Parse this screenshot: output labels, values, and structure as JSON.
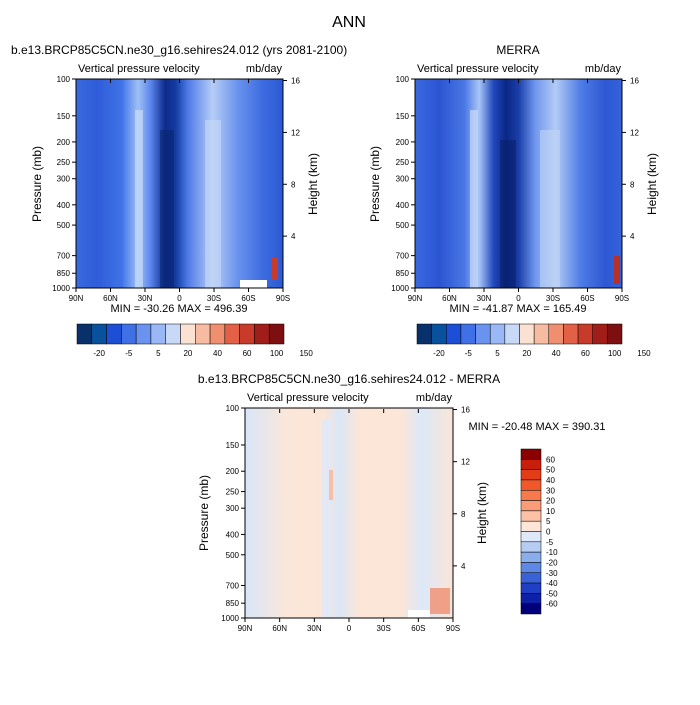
{
  "figure": {
    "title": "ANN"
  },
  "panels": [
    {
      "title": "b.e13.BRCP85C5CN.ne30_g16.sehires24.012 (yrs 2081-2100)",
      "variable": "Vertical pressure velocity",
      "units": "mb/day",
      "ylabel": "Pressure (mb)",
      "y2label": "Height (km)",
      "minmax": "MIN = -30.26  MAX = 496.39"
    },
    {
      "title": "MERRA",
      "variable": "Vertical pressure velocity",
      "units": "mb/day",
      "ylabel": "Pressure (mb)",
      "y2label": "Height (km)",
      "minmax": "MIN = -41.87  MAX = 165.49"
    },
    {
      "title": "b.e13.BRCP85C5CN.ne30_g16.sehires24.012 - MERRA",
      "variable": "Vertical pressure velocity",
      "units": "mb/day",
      "ylabel": "Pressure (mb)",
      "y2label": "Height (km)",
      "minmax": "MIN = -20.48  MAX = 390.31"
    }
  ],
  "colorbars": {
    "absolute": {
      "labels": [
        "-20",
        "-5",
        "5",
        "20",
        "40",
        "60",
        "100",
        "150"
      ],
      "colors": [
        "#08306b",
        "#08519c",
        "#1c4fd6",
        "#3f70e6",
        "#6a93f0",
        "#99b8f5",
        "#c8d9f8",
        "#fbe1d2",
        "#f7bba1",
        "#f08f70",
        "#e26046",
        "#c83a2a",
        "#a01d19",
        "#7d0f10"
      ]
    },
    "difference": {
      "labels": [
        "60",
        "50",
        "40",
        "30",
        "20",
        "10",
        "5",
        "0",
        "-5",
        "-10",
        "-20",
        "-30",
        "-40",
        "-50",
        "-60"
      ],
      "colors": [
        "#8b0000",
        "#c81e0b",
        "#e23d17",
        "#f0582b",
        "#f77a4d",
        "#fa9c78",
        "#fcc1a6",
        "#fde6d8",
        "#dde9f8",
        "#b5cdf2",
        "#8aadeb",
        "#5d88e3",
        "#3a62d8",
        "#1f3fc5",
        "#0d21a8",
        "#00007a"
      ]
    }
  },
  "chart_data": [
    {
      "type": "heatmap",
      "title": "b.e13.BRCP85C5CN.ne30_g16.sehires24.012 (yrs 2081-2100)",
      "xlabel": "",
      "ylabel": "Pressure (mb)",
      "y2label": "Height (km)",
      "x_ticks": [
        "90N",
        "60N",
        "30N",
        "0",
        "30S",
        "60S",
        "90S"
      ],
      "y_ticks": [
        100,
        150,
        200,
        250,
        300,
        400,
        500,
        700,
        850,
        1000
      ],
      "y2_ticks": [
        16,
        12,
        8,
        4
      ],
      "ylim": [
        1000,
        100
      ],
      "yscale": "log",
      "min": -30.26,
      "max": 496.39
    },
    {
      "type": "heatmap",
      "title": "MERRA",
      "xlabel": "",
      "ylabel": "Pressure (mb)",
      "y2label": "Height (km)",
      "x_ticks": [
        "90N",
        "60N",
        "30N",
        "0",
        "30S",
        "60S",
        "90S"
      ],
      "y_ticks": [
        100,
        150,
        200,
        250,
        300,
        400,
        500,
        700,
        850,
        1000
      ],
      "y2_ticks": [
        16,
        12,
        8,
        4
      ],
      "ylim": [
        1000,
        100
      ],
      "yscale": "log",
      "min": -41.87,
      "max": 165.49
    },
    {
      "type": "heatmap",
      "title": "b.e13.BRCP85C5CN.ne30_g16.sehires24.012 - MERRA",
      "xlabel": "",
      "ylabel": "Pressure (mb)",
      "y2label": "Height (km)",
      "x_ticks": [
        "90N",
        "60N",
        "30N",
        "0",
        "30S",
        "60S",
        "90S"
      ],
      "y_ticks": [
        100,
        150,
        200,
        250,
        300,
        400,
        500,
        700,
        850,
        1000
      ],
      "y2_ticks": [
        16,
        12,
        8,
        4
      ],
      "ylim": [
        1000,
        100
      ],
      "yscale": "log",
      "min": -20.48,
      "max": 390.31
    }
  ]
}
